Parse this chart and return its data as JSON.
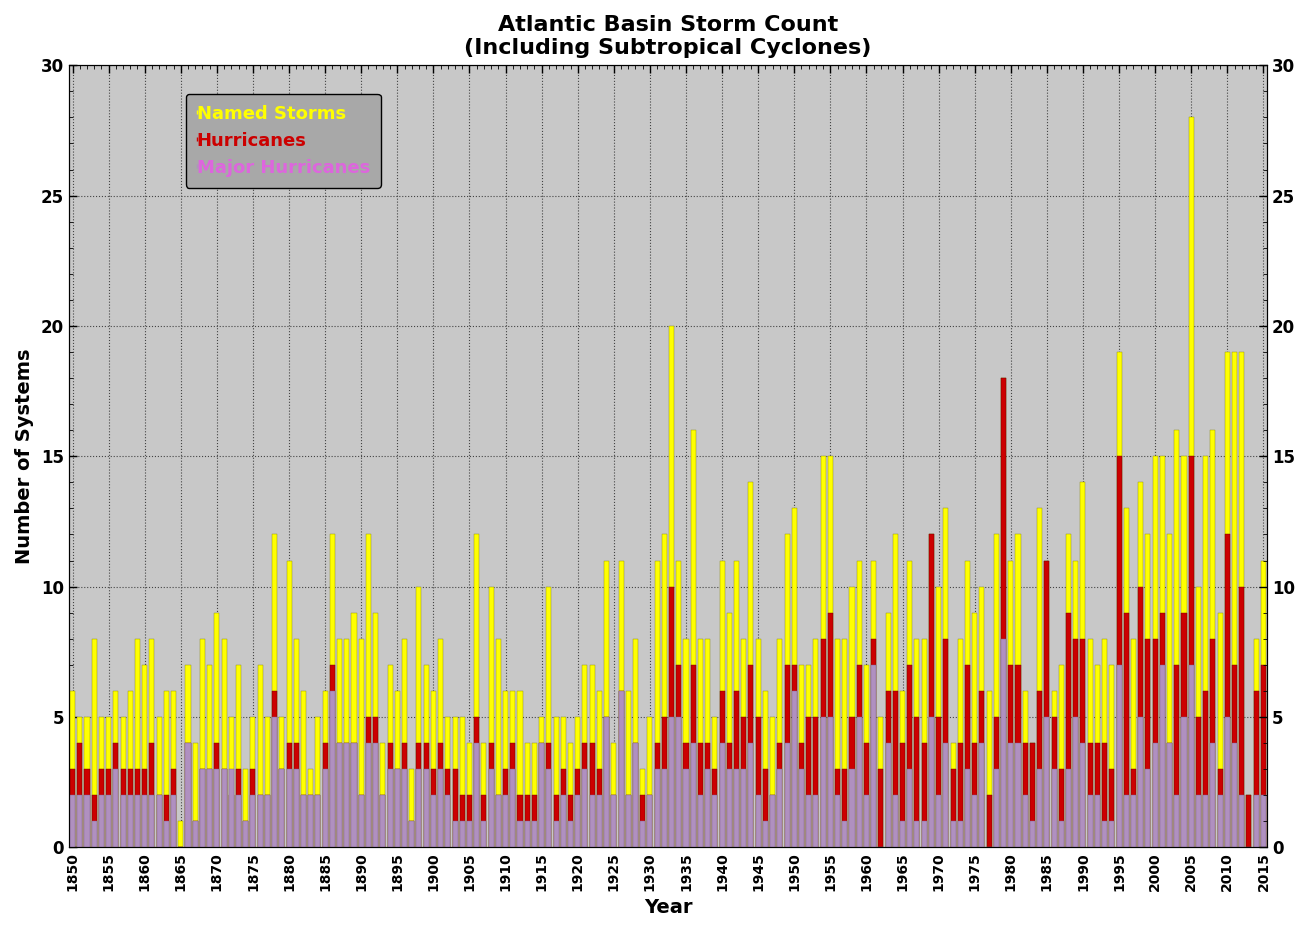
{
  "title": "Atlantic Basin Storm Count\n(Including Subtropical Cyclones)",
  "xlabel": "Year",
  "ylabel": "Number of Systems",
  "ylim": [
    0,
    30
  ],
  "xlim": [
    1849.5,
    2015.5
  ],
  "plot_bg": "#c8c8c8",
  "fig_bg": "#ffffff",
  "bar_color_named": "#ffff00",
  "bar_color_hurr": "#cc0000",
  "bar_color_major": "#b090c0",
  "legend_bg": "#a8a8a8",
  "years": [
    1850,
    1851,
    1852,
    1853,
    1854,
    1855,
    1856,
    1857,
    1858,
    1859,
    1860,
    1861,
    1862,
    1863,
    1864,
    1865,
    1866,
    1867,
    1868,
    1869,
    1870,
    1871,
    1872,
    1873,
    1874,
    1875,
    1876,
    1877,
    1878,
    1879,
    1880,
    1881,
    1882,
    1883,
    1884,
    1885,
    1886,
    1887,
    1888,
    1889,
    1890,
    1891,
    1892,
    1893,
    1894,
    1895,
    1896,
    1897,
    1898,
    1899,
    1900,
    1901,
    1902,
    1903,
    1904,
    1905,
    1906,
    1907,
    1908,
    1909,
    1910,
    1911,
    1912,
    1913,
    1914,
    1915,
    1916,
    1917,
    1918,
    1919,
    1920,
    1921,
    1922,
    1923,
    1924,
    1925,
    1926,
    1927,
    1928,
    1929,
    1930,
    1931,
    1932,
    1933,
    1934,
    1935,
    1936,
    1937,
    1938,
    1939,
    1940,
    1941,
    1942,
    1943,
    1944,
    1945,
    1946,
    1947,
    1948,
    1949,
    1950,
    1951,
    1952,
    1953,
    1954,
    1955,
    1956,
    1957,
    1958,
    1959,
    1960,
    1961,
    1962,
    1963,
    1964,
    1965,
    1966,
    1967,
    1968,
    1969,
    1970,
    1971,
    1972,
    1973,
    1974,
    1975,
    1976,
    1977,
    1978,
    1979,
    1980,
    1981,
    1982,
    1983,
    1984,
    1985,
    1986,
    1987,
    1988,
    1989,
    1990,
    1991,
    1992,
    1993,
    1994,
    1995,
    1996,
    1997,
    1998,
    1999,
    2000,
    2001,
    2002,
    2003,
    2004,
    2005,
    2006,
    2007,
    2008,
    2009,
    2010,
    2011,
    2012,
    2013,
    2014,
    2015
  ],
  "named_storms": [
    6,
    5,
    5,
    8,
    5,
    5,
    6,
    5,
    6,
    8,
    7,
    8,
    5,
    6,
    6,
    1,
    7,
    4,
    8,
    7,
    9,
    8,
    5,
    7,
    3,
    5,
    7,
    5,
    12,
    5,
    11,
    8,
    6,
    3,
    5,
    6,
    12,
    8,
    8,
    9,
    8,
    12,
    9,
    4,
    7,
    6,
    8,
    3,
    10,
    7,
    6,
    8,
    5,
    5,
    5,
    4,
    12,
    4,
    10,
    8,
    6,
    6,
    6,
    4,
    4,
    5,
    10,
    5,
    5,
    4,
    5,
    7,
    7,
    6,
    11,
    4,
    11,
    6,
    8,
    3,
    5,
    11,
    12,
    20,
    11,
    8,
    16,
    8,
    8,
    5,
    11,
    9,
    11,
    8,
    14,
    8,
    6,
    5,
    8,
    12,
    13,
    7,
    7,
    8,
    15,
    15,
    8,
    8,
    10,
    11,
    7,
    11,
    5,
    9,
    12,
    6,
    11,
    8,
    8,
    12,
    10,
    13,
    4,
    8,
    11,
    9,
    10,
    6,
    12,
    18,
    11,
    12,
    6,
    4,
    13,
    11,
    6,
    7,
    12,
    11,
    14,
    8,
    7,
    8,
    7,
    19,
    13,
    8,
    14,
    12,
    15,
    15,
    12,
    16,
    15,
    28,
    10,
    15,
    16,
    9,
    19,
    19,
    19,
    2,
    8,
    11
  ],
  "hurricanes": [
    3,
    4,
    3,
    2,
    3,
    3,
    4,
    3,
    3,
    3,
    3,
    4,
    2,
    2,
    3,
    0,
    4,
    1,
    3,
    3,
    4,
    3,
    2,
    3,
    1,
    3,
    2,
    2,
    6,
    3,
    4,
    4,
    2,
    2,
    2,
    4,
    7,
    4,
    4,
    4,
    2,
    5,
    5,
    2,
    4,
    3,
    4,
    1,
    4,
    4,
    3,
    4,
    3,
    3,
    2,
    2,
    5,
    2,
    4,
    2,
    3,
    4,
    2,
    2,
    2,
    4,
    4,
    2,
    3,
    2,
    3,
    4,
    4,
    3,
    5,
    2,
    6,
    2,
    4,
    2,
    2,
    4,
    5,
    10,
    7,
    4,
    7,
    4,
    4,
    3,
    6,
    4,
    6,
    5,
    7,
    5,
    3,
    2,
    4,
    7,
    7,
    4,
    5,
    5,
    8,
    9,
    3,
    3,
    5,
    7,
    4,
    8,
    3,
    6,
    6,
    4,
    7,
    5,
    4,
    12,
    5,
    8,
    3,
    4,
    7,
    4,
    6,
    2,
    5,
    18,
    7,
    7,
    4,
    4,
    6,
    11,
    5,
    3,
    9,
    8,
    8,
    4,
    4,
    4,
    3,
    15,
    9,
    3,
    10,
    8,
    8,
    9,
    4,
    7,
    9,
    15,
    5,
    6,
    8,
    3,
    12,
    7,
    10,
    2,
    6,
    7
  ],
  "major_hurricanes": [
    2,
    2,
    2,
    1,
    2,
    2,
    3,
    2,
    2,
    2,
    2,
    2,
    2,
    1,
    2,
    0,
    4,
    1,
    3,
    3,
    3,
    3,
    3,
    2,
    1,
    2,
    2,
    2,
    5,
    3,
    3,
    3,
    2,
    2,
    2,
    3,
    6,
    4,
    4,
    4,
    2,
    4,
    4,
    2,
    3,
    3,
    3,
    1,
    3,
    3,
    2,
    3,
    2,
    1,
    1,
    1,
    4,
    1,
    3,
    2,
    2,
    3,
    1,
    1,
    1,
    4,
    3,
    1,
    2,
    1,
    2,
    3,
    2,
    2,
    5,
    2,
    6,
    2,
    4,
    1,
    2,
    3,
    3,
    5,
    5,
    3,
    4,
    2,
    3,
    2,
    4,
    3,
    3,
    3,
    4,
    2,
    1,
    2,
    3,
    4,
    6,
    3,
    2,
    2,
    5,
    5,
    2,
    1,
    3,
    5,
    2,
    7,
    0,
    4,
    2,
    1,
    3,
    1,
    1,
    5,
    2,
    4,
    1,
    1,
    3,
    2,
    4,
    0,
    3,
    8,
    4,
    4,
    2,
    1,
    3,
    5,
    3,
    1,
    3,
    5,
    4,
    2,
    2,
    1,
    1,
    7,
    2,
    2,
    5,
    3,
    4,
    7,
    4,
    2,
    5,
    7,
    2,
    2,
    4,
    2,
    5,
    4,
    2,
    0,
    2,
    2
  ]
}
